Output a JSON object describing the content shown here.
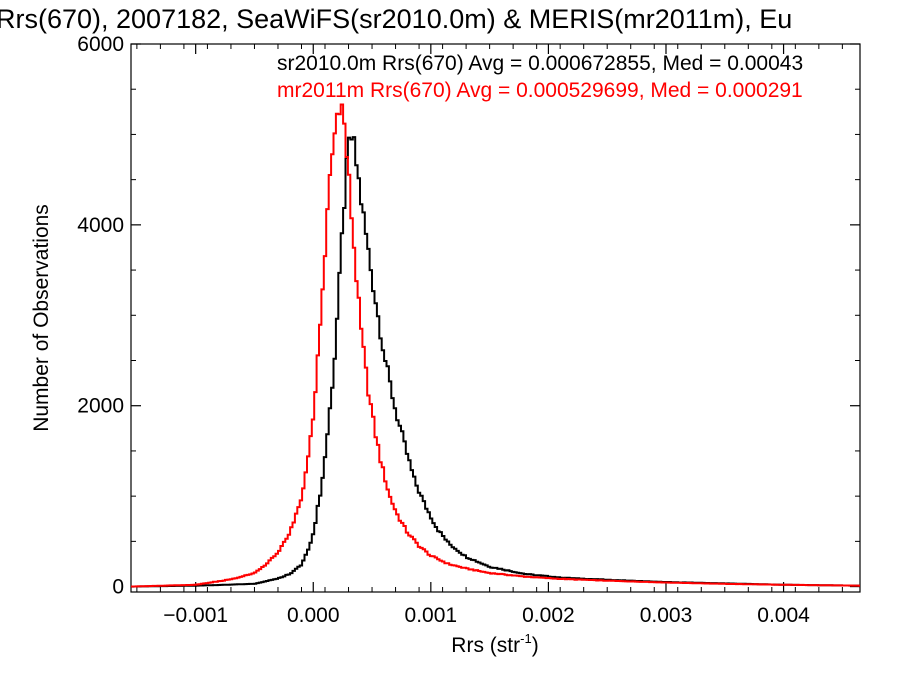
{
  "chart_data": {
    "type": "line",
    "title": "Rrs(670), 2007182, SeaWiFS(sr2010.0m) & MERIS(mr2011m), Eu",
    "xlabel_base": "Rrs (str",
    "xlabel_sup": "-1",
    "xlabel_close": ")",
    "ylabel": "Number of Observations",
    "xlim": [
      -0.00155,
      0.00465
    ],
    "ylim": [
      -60,
      6000
    ],
    "xticks": [
      -0.001,
      0.0,
      0.001,
      0.002,
      0.003,
      0.004
    ],
    "xtick_labels": [
      "−0.001",
      "0.000",
      "0.001",
      "0.002",
      "0.003",
      "0.004"
    ],
    "yticks": [
      0,
      2000,
      4000,
      6000
    ],
    "ytick_labels": [
      "0",
      "2000",
      "4000",
      "6000"
    ],
    "grid": false,
    "step_style": "histogram",
    "series": [
      {
        "name": "sr2010.0m",
        "color": "#000000",
        "stat_text": "sr2010.0m Rrs(670) Avg = 0.000672855, Med = 0.00043",
        "points": [
          [
            -0.00155,
            0
          ],
          [
            -0.001,
            10
          ],
          [
            -0.0005,
            30
          ],
          [
            -0.0003,
            90
          ],
          [
            -0.0002,
            140
          ],
          [
            -0.0001,
            240
          ],
          [
            -2e-05,
            480
          ],
          [
            3e-05,
            800
          ],
          [
            8e-05,
            1200
          ],
          [
            0.00013,
            1800
          ],
          [
            0.00018,
            2500
          ],
          [
            0.00022,
            3300
          ],
          [
            0.00026,
            4200
          ],
          [
            0.0003,
            4850
          ],
          [
            0.00033,
            4980
          ],
          [
            0.00037,
            4650
          ],
          [
            0.00042,
            4150
          ],
          [
            0.00048,
            3600
          ],
          [
            0.00055,
            3000
          ],
          [
            0.00062,
            2450
          ],
          [
            0.0007,
            1950
          ],
          [
            0.00078,
            1550
          ],
          [
            0.00086,
            1180
          ],
          [
            0.00095,
            900
          ],
          [
            0.00105,
            650
          ],
          [
            0.00115,
            480
          ],
          [
            0.0013,
            330
          ],
          [
            0.0015,
            220
          ],
          [
            0.0018,
            140
          ],
          [
            0.0021,
            100
          ],
          [
            0.0025,
            75
          ],
          [
            0.003,
            50
          ],
          [
            0.0035,
            35
          ],
          [
            0.004,
            20
          ],
          [
            0.00465,
            10
          ]
        ]
      },
      {
        "name": "mr2011m",
        "color": "#ff0000",
        "stat_text": "mr2011m Rrs(670) Avg = 0.000529699, Med = 0.000291",
        "points": [
          [
            -0.00155,
            0
          ],
          [
            -0.001,
            20
          ],
          [
            -0.0007,
            80
          ],
          [
            -0.0005,
            150
          ],
          [
            -0.0004,
            250
          ],
          [
            -0.0003,
            370
          ],
          [
            -0.0002,
            600
          ],
          [
            -0.0001,
            950
          ],
          [
            -5e-05,
            1350
          ],
          [
            0.0,
            1900
          ],
          [
            5e-05,
            2700
          ],
          [
            0.0001,
            3700
          ],
          [
            0.00015,
            4650
          ],
          [
            0.0002,
            5200
          ],
          [
            0.00023,
            5430
          ],
          [
            0.00026,
            5150
          ],
          [
            0.0003,
            4550
          ],
          [
            0.00035,
            3700
          ],
          [
            0.0004,
            2900
          ],
          [
            0.00046,
            2250
          ],
          [
            0.00052,
            1750
          ],
          [
            0.00058,
            1350
          ],
          [
            0.00065,
            1000
          ],
          [
            0.00072,
            780
          ],
          [
            0.0008,
            600
          ],
          [
            0.0009,
            450
          ],
          [
            0.001,
            340
          ],
          [
            0.00115,
            250
          ],
          [
            0.0013,
            200
          ],
          [
            0.0015,
            150
          ],
          [
            0.0018,
            110
          ],
          [
            0.0021,
            85
          ],
          [
            0.0025,
            65
          ],
          [
            0.003,
            45
          ],
          [
            0.0035,
            30
          ],
          [
            0.004,
            20
          ],
          [
            0.00465,
            10
          ]
        ]
      }
    ]
  }
}
